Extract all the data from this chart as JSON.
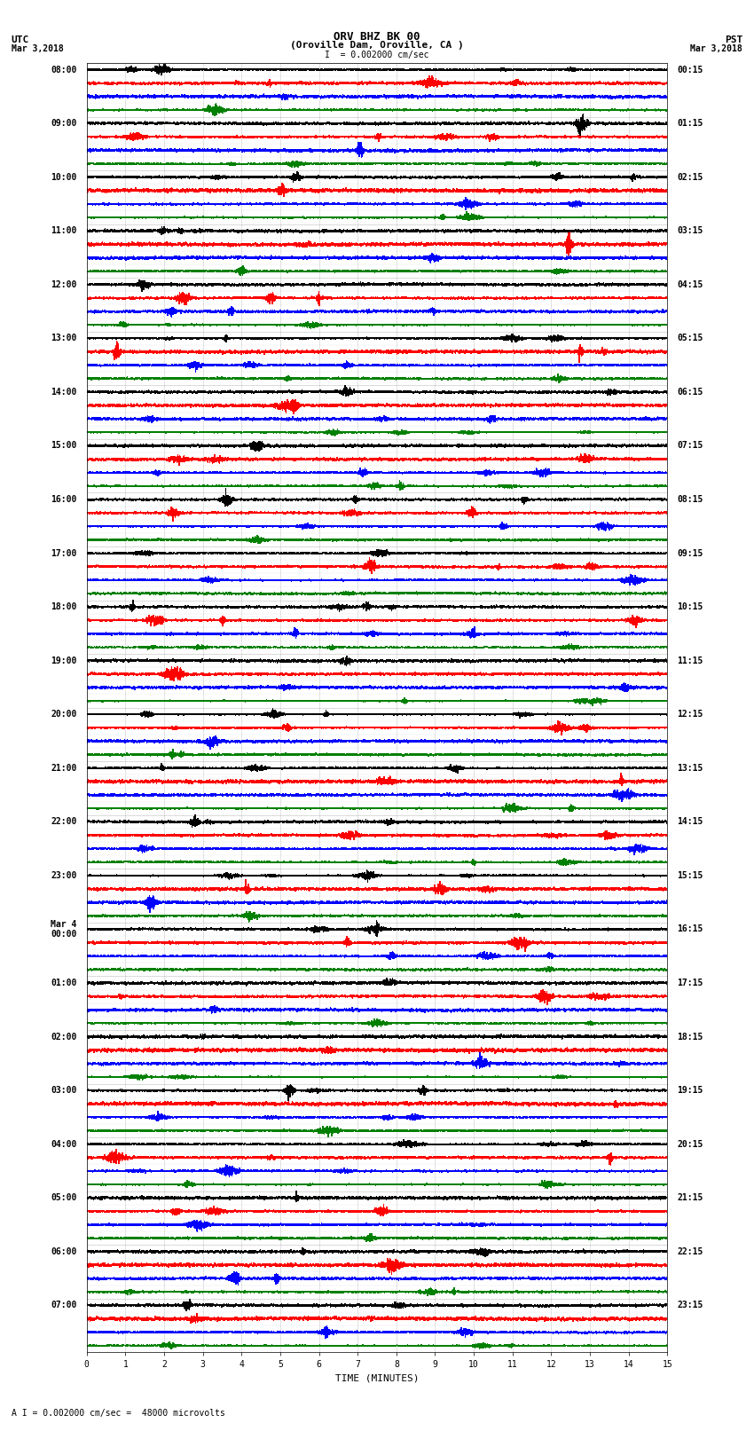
{
  "title_line1": "ORV BHZ BK 00",
  "title_line2": "(Oroville Dam, Oroville, CA )",
  "title_line3": "I  = 0.002000 cm/sec",
  "utc_label": "UTC",
  "pst_label": "PST",
  "date_left": "Mar 3,2018",
  "date_right": "Mar 3,2018",
  "xlabel": "TIME (MINUTES)",
  "footer": "A I = 0.002000 cm/sec =  48000 microvolts",
  "xlim": [
    0,
    15
  ],
  "xticks": [
    0,
    1,
    2,
    3,
    4,
    5,
    6,
    7,
    8,
    9,
    10,
    11,
    12,
    13,
    14,
    15
  ],
  "num_hour_groups": 24,
  "traces_per_group": 4,
  "row_colors": [
    "black",
    "red",
    "blue",
    "green"
  ],
  "left_times": [
    "08:00",
    "09:00",
    "10:00",
    "11:00",
    "12:00",
    "13:00",
    "14:00",
    "15:00",
    "16:00",
    "17:00",
    "18:00",
    "19:00",
    "20:00",
    "21:00",
    "22:00",
    "23:00",
    "Mar 4\n00:00",
    "01:00",
    "02:00",
    "03:00",
    "04:00",
    "05:00",
    "06:00",
    "07:00"
  ],
  "right_times": [
    "00:15",
    "01:15",
    "02:15",
    "03:15",
    "04:15",
    "05:15",
    "06:15",
    "07:15",
    "08:15",
    "09:15",
    "10:15",
    "11:15",
    "12:15",
    "13:15",
    "14:15",
    "15:15",
    "16:15",
    "17:15",
    "18:15",
    "19:15",
    "20:15",
    "21:15",
    "22:15",
    "23:15"
  ],
  "bg_color": "white",
  "trace_linewidth": 0.5,
  "noise_amplitude": 0.28,
  "grid_color": "#999999",
  "grid_linewidth": 0.4,
  "font_size_title": 9,
  "font_size_labels": 7,
  "font_size_ticks": 7,
  "font_size_footer": 7
}
